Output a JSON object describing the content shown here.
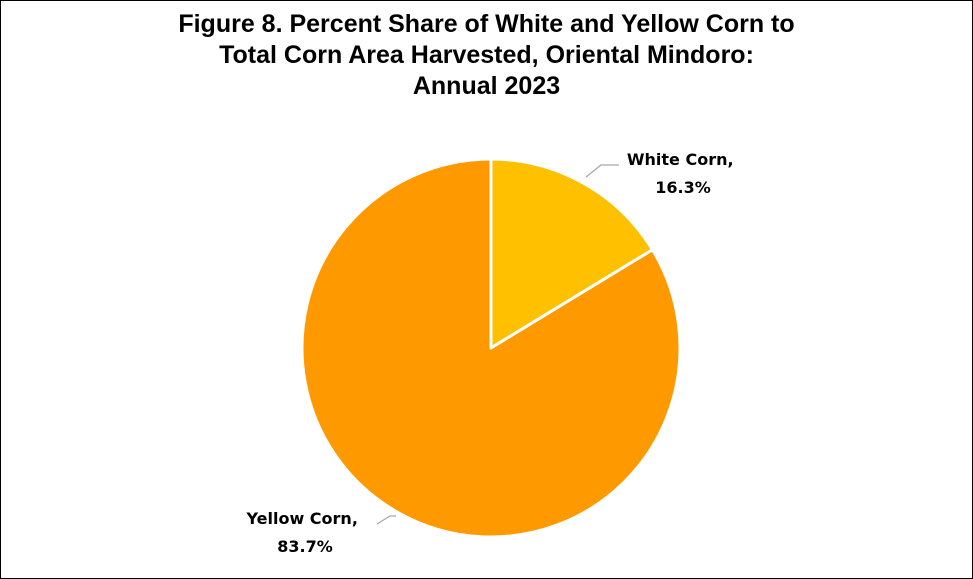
{
  "chart_data": {
    "type": "pie",
    "title_lines": [
      "Figure 8. Percent Share of White and Yellow Corn to",
      "Total Corn Area Harvested, Oriental Mindoro:",
      "Annual 2023"
    ],
    "slices": [
      {
        "name": "White Corn,",
        "value": 16.3,
        "value_label": "16.3%",
        "color": "#ffc000"
      },
      {
        "name": "Yellow Corn,",
        "value": 83.7,
        "value_label": "83.7%",
        "color": "#ff9900"
      }
    ],
    "start_angle_deg": 0,
    "direction": "clockwise",
    "slice_border_color": "#ffffff",
    "legend": "none"
  }
}
